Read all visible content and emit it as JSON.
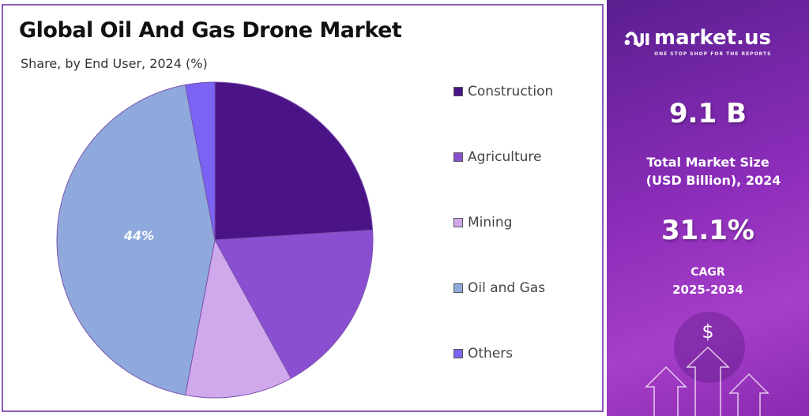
{
  "chart_data": {
    "type": "pie",
    "title": "Global Oil And Gas Drone Market",
    "subtitle": "Share, by End User, 2024 (%)",
    "categories": [
      "Construction",
      "Agriculture",
      "Mining",
      "Oil and Gas",
      "Others"
    ],
    "values": [
      24,
      18,
      11,
      44,
      3
    ],
    "colors": [
      "#4a1486",
      "#8a4fd0",
      "#d0a9ec",
      "#8fa9dc",
      "#7b63f3"
    ],
    "data_labels": [
      {
        "category": "Oil and Gas",
        "text": "44%"
      }
    ],
    "legend_position": "right"
  },
  "brand": {
    "name": "market.us",
    "tagline": "ONE STOP SHOP FOR THE REPORTS"
  },
  "stats": {
    "market_size": "9.1 B",
    "market_size_label_1": "Total Market Size",
    "market_size_label_2": "(USD Billion), 2024",
    "cagr": "31.1%",
    "cagr_label": "CAGR",
    "cagr_period": "2025-2034",
    "dollar_icon_text": "$"
  }
}
